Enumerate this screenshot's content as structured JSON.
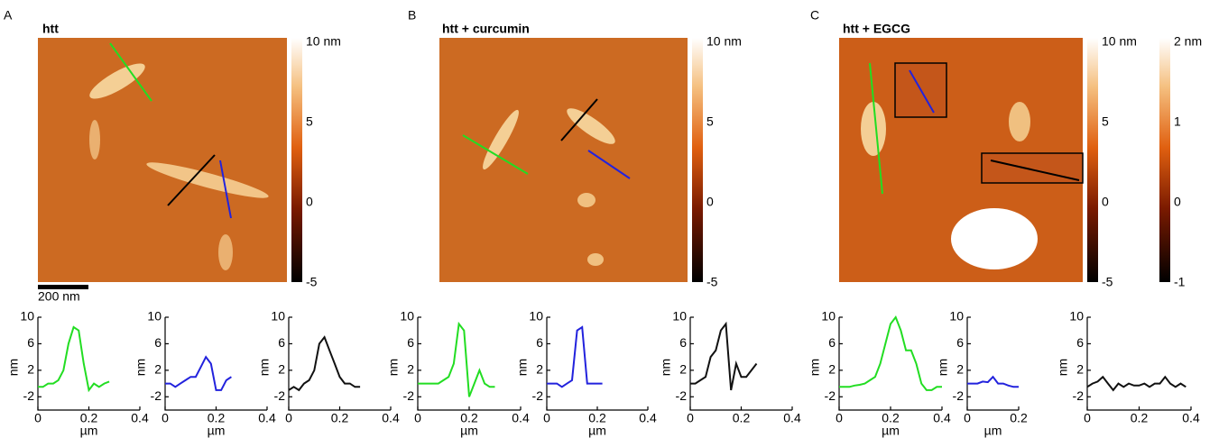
{
  "panels": [
    {
      "label": "A",
      "title": "htt",
      "colorbars": [
        [
          "10 nm",
          "5",
          "0",
          "-5"
        ]
      ],
      "scale_bar": "200 nm"
    },
    {
      "label": "B",
      "title": "htt + curcumin",
      "colorbars": [
        [
          "10 nm",
          "5",
          "0",
          "-5"
        ]
      ]
    },
    {
      "label": "C",
      "title": "htt + EGCG",
      "colorbars": [
        [
          "10 nm",
          "5",
          "0",
          "-5"
        ],
        [
          "2 nm",
          "1",
          "0",
          "-1"
        ]
      ]
    }
  ],
  "chart_data": [
    {
      "type": "line",
      "ylabel": "nm",
      "xlabel": "µm",
      "xlim": [
        0,
        0.4
      ],
      "xticks": [
        0,
        0.2,
        0.4
      ],
      "ylim": [
        -4,
        10
      ],
      "yticks": [
        -2,
        2,
        6,
        10
      ],
      "series": [
        {
          "color": "#22dd22",
          "x": [
            0,
            0.02,
            0.04,
            0.06,
            0.08,
            0.1,
            0.12,
            0.14,
            0.16,
            0.18,
            0.2,
            0.22,
            0.24,
            0.26,
            0.28
          ],
          "values": [
            -0.5,
            -0.5,
            0,
            0,
            0.5,
            2,
            6,
            8.5,
            8,
            3,
            -1,
            0,
            -0.5,
            0,
            0.3
          ]
        }
      ]
    },
    {
      "type": "line",
      "ylabel": "nm",
      "xlabel": "µm",
      "xlim": [
        0,
        0.4
      ],
      "xticks": [
        0,
        0.2,
        0.4
      ],
      "ylim": [
        -4,
        10
      ],
      "yticks": [
        -2,
        2,
        6,
        10
      ],
      "series": [
        {
          "color": "#2222dd",
          "x": [
            0,
            0.02,
            0.04,
            0.06,
            0.08,
            0.1,
            0.12,
            0.14,
            0.16,
            0.18,
            0.2,
            0.22,
            0.24,
            0.26
          ],
          "values": [
            0,
            0,
            -0.5,
            0,
            0.5,
            1,
            1,
            2.5,
            4,
            3,
            -1,
            -1,
            0.5,
            1
          ]
        }
      ]
    },
    {
      "type": "line",
      "ylabel": "nm",
      "xlim": [
        0,
        0.4
      ],
      "xticks": [
        0,
        0.2,
        0.4
      ],
      "ylim": [
        -4,
        10
      ],
      "yticks": [
        -2,
        2,
        6,
        10
      ],
      "series": [
        {
          "color": "#111111",
          "x": [
            0,
            0.02,
            0.04,
            0.06,
            0.08,
            0.1,
            0.12,
            0.14,
            0.16,
            0.18,
            0.2,
            0.22,
            0.24,
            0.26,
            0.28
          ],
          "values": [
            -1,
            -0.5,
            -1,
            0,
            0.5,
            2,
            6,
            7,
            5,
            3,
            1,
            0,
            0,
            -0.5,
            -0.5
          ]
        }
      ]
    },
    {
      "type": "line",
      "ylabel": "nm",
      "xlabel": "µm",
      "xlim": [
        0,
        0.4
      ],
      "xticks": [
        0,
        0.2,
        0.4
      ],
      "ylim": [
        -4,
        10
      ],
      "yticks": [
        -2,
        2,
        6,
        10
      ],
      "series": [
        {
          "color": "#22dd22",
          "x": [
            0,
            0.02,
            0.04,
            0.06,
            0.08,
            0.1,
            0.12,
            0.14,
            0.16,
            0.18,
            0.2,
            0.22,
            0.24,
            0.26,
            0.28,
            0.3
          ],
          "values": [
            0,
            0,
            0,
            0,
            0,
            0.5,
            1,
            3,
            9,
            8,
            -2,
            0,
            2,
            0,
            -0.5,
            -0.5
          ]
        }
      ]
    },
    {
      "type": "line",
      "ylabel": "nm",
      "xlabel": "µm",
      "xlim": [
        0,
        0.4
      ],
      "xticks": [
        0,
        0.2,
        0.4
      ],
      "ylim": [
        -4,
        10
      ],
      "yticks": [
        -2,
        2,
        6,
        10
      ],
      "series": [
        {
          "color": "#2222dd",
          "x": [
            0,
            0.02,
            0.04,
            0.06,
            0.08,
            0.1,
            0.12,
            0.14,
            0.16,
            0.18,
            0.2,
            0.22
          ],
          "values": [
            0,
            0,
            0,
            -0.5,
            0,
            0.5,
            8,
            8.5,
            0,
            0,
            0,
            0
          ]
        }
      ]
    },
    {
      "type": "line",
      "ylabel": "nm",
      "xlim": [
        0,
        0.4
      ],
      "xticks": [
        0,
        0.2,
        0.4
      ],
      "ylim": [
        -4,
        10
      ],
      "yticks": [
        -2,
        2,
        6,
        10
      ],
      "series": [
        {
          "color": "#111111",
          "x": [
            0,
            0.02,
            0.04,
            0.06,
            0.08,
            0.1,
            0.12,
            0.14,
            0.16,
            0.18,
            0.2,
            0.22,
            0.24,
            0.26
          ],
          "values": [
            0,
            0,
            0.5,
            1,
            4,
            5,
            8,
            9,
            -1,
            3,
            1,
            1,
            2,
            3
          ]
        }
      ]
    },
    {
      "type": "line",
      "ylabel": "nm",
      "xlabel": "µm",
      "xlim": [
        0,
        0.4
      ],
      "xticks": [
        0,
        0.2,
        0.4
      ],
      "ylim": [
        -4,
        10
      ],
      "yticks": [
        -2,
        2,
        6,
        10
      ],
      "series": [
        {
          "color": "#22dd22",
          "x": [
            0,
            0.02,
            0.04,
            0.06,
            0.08,
            0.1,
            0.12,
            0.14,
            0.16,
            0.18,
            0.2,
            0.22,
            0.24,
            0.26,
            0.28,
            0.3,
            0.32,
            0.34,
            0.36,
            0.38,
            0.4
          ],
          "values": [
            -0.5,
            -0.5,
            -0.5,
            -0.3,
            -0.2,
            0,
            0.5,
            1,
            3,
            6,
            9,
            10,
            8,
            5,
            5,
            3,
            0,
            -1,
            -1,
            -0.5,
            -0.5
          ]
        }
      ]
    },
    {
      "type": "line",
      "ylabel": "nm",
      "xlabel": "µm",
      "xlim": [
        0,
        0.2
      ],
      "xticks": [
        0,
        0.2
      ],
      "ylim": [
        -4,
        10
      ],
      "yticks": [
        -2,
        2,
        6,
        10
      ],
      "series": [
        {
          "color": "#2222dd",
          "x": [
            0,
            0.02,
            0.04,
            0.06,
            0.08,
            0.1,
            0.12,
            0.14,
            0.16,
            0.18,
            0.2
          ],
          "values": [
            0,
            0,
            0,
            0.3,
            0.2,
            1,
            0,
            0,
            -0.3,
            -0.5,
            -0.5
          ]
        }
      ]
    },
    {
      "type": "line",
      "ylabel": "nm",
      "xlim": [
        0,
        0.4
      ],
      "xticks": [
        0,
        0.2,
        0.4
      ],
      "ylim": [
        -4,
        10
      ],
      "yticks": [
        -2,
        2,
        6,
        10
      ],
      "series": [
        {
          "color": "#111111",
          "x": [
            0,
            0.02,
            0.04,
            0.06,
            0.08,
            0.1,
            0.12,
            0.14,
            0.16,
            0.18,
            0.2,
            0.22,
            0.24,
            0.26,
            0.28,
            0.3,
            0.32,
            0.34,
            0.36,
            0.38
          ],
          "values": [
            -0.5,
            0,
            0.3,
            1,
            0,
            -1,
            0,
            -0.5,
            0,
            -0.3,
            -0.3,
            0,
            -0.5,
            0,
            0,
            1,
            0,
            -0.5,
            0,
            -0.5
          ]
        }
      ]
    }
  ]
}
